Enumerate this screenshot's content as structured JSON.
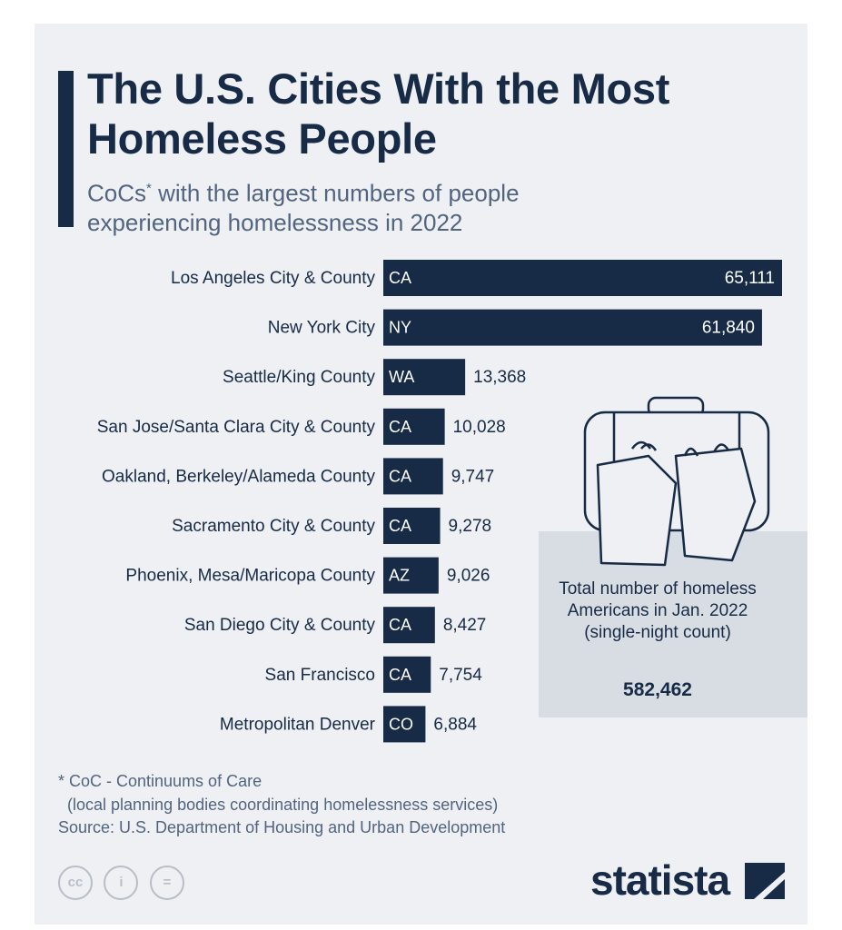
{
  "title": "The U.S. Cities With the Most Homeless People",
  "subtitle_main": "CoCs",
  "subtitle_sup": "*",
  "subtitle_rest": " with the largest numbers of people experiencing homelessness in 2022",
  "colors": {
    "bar": "#172a46",
    "title_bar": "#172a46",
    "background": "#eef0f3",
    "total_box": "#d8dde3"
  },
  "chart_data": {
    "type": "bar",
    "orientation": "horizontal",
    "title": "The U.S. Cities With the Most Homeless People",
    "categories": [
      "Los Angeles City & County",
      "New York City",
      "Seattle/King County",
      "San Jose/Santa Clara City & County",
      "Oakland, Berkeley/Alameda County",
      "Sacramento City & County",
      "Phoenix, Mesa/Maricopa County",
      "San Diego City & County",
      "San Francisco",
      "Metropolitan Denver"
    ],
    "states": [
      "CA",
      "NY",
      "WA",
      "CA",
      "CA",
      "CA",
      "AZ",
      "CA",
      "CA",
      "CO"
    ],
    "values": [
      65111,
      61840,
      13368,
      10028,
      9747,
      9278,
      9026,
      8427,
      7754,
      6884
    ],
    "value_labels": [
      "65,111",
      "61,840",
      "13,368",
      "10,028",
      "9,747",
      "9,278",
      "9,026",
      "8,427",
      "7,754",
      "6,884"
    ],
    "xlim": [
      0,
      65111
    ],
    "grid": false
  },
  "total": {
    "label": "Total number of homeless Americans in Jan. 2022 (single-night count)",
    "value": "582,462",
    "icon": "luggage-bags-icon"
  },
  "footnote": {
    "line1": "* CoC - Continuums of Care",
    "line2": "  (local planning bodies coordinating homelessness services)"
  },
  "source": "Source: U.S. Department of Housing and Urban Development",
  "license_icons": [
    "cc",
    "i",
    "="
  ],
  "brand": "statista"
}
